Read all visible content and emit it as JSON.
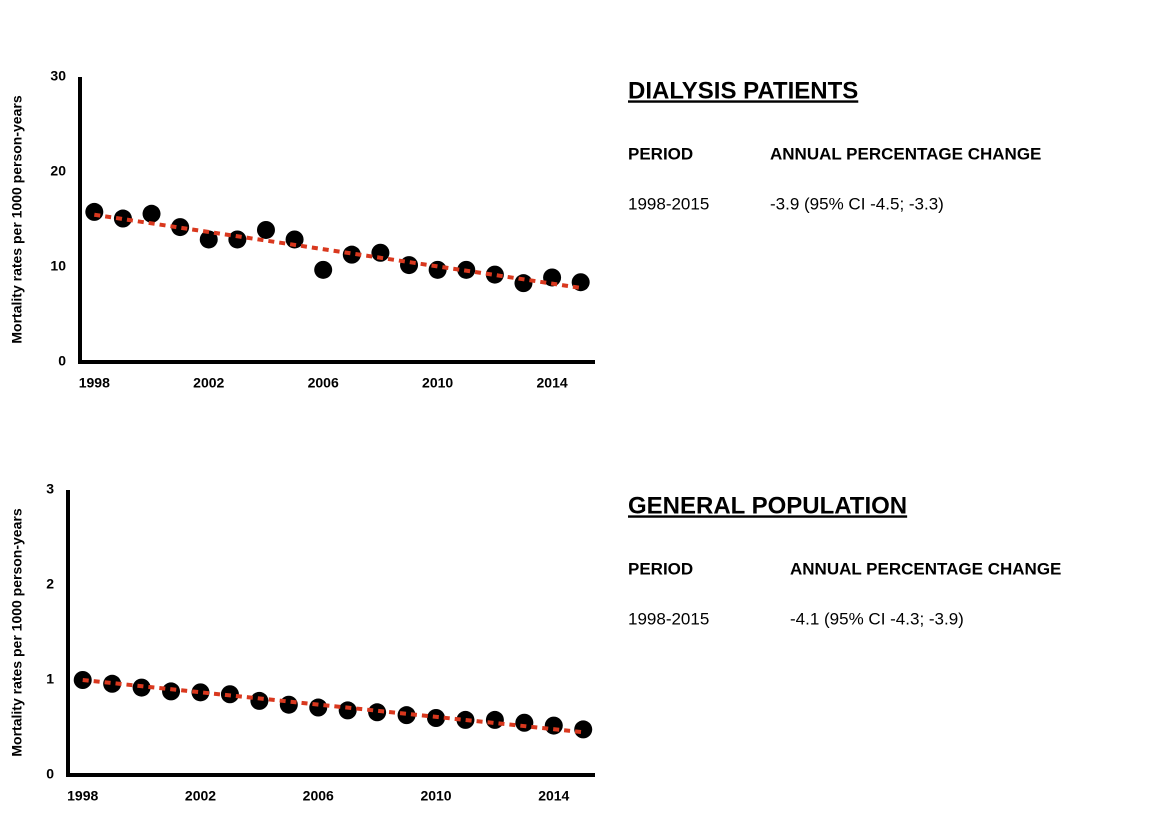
{
  "chart_data": [
    {
      "type": "scatter",
      "ylabel": "Mortality rates per 1000 person-years",
      "x": [
        1998,
        1999,
        2000,
        2001,
        2002,
        2003,
        2004,
        2005,
        2006,
        2007,
        2008,
        2009,
        2010,
        2011,
        2012,
        2013,
        2014,
        2015
      ],
      "values": [
        15.8,
        15.1,
        15.6,
        14.2,
        12.9,
        12.9,
        13.9,
        12.9,
        9.7,
        11.3,
        11.5,
        10.2,
        9.7,
        9.7,
        9.2,
        8.3,
        8.9,
        8.4
      ],
      "color": "#000000",
      "trend": {
        "x": [
          1998,
          2015
        ],
        "values": [
          15.5,
          7.8
        ],
        "color": "#d9381e"
      },
      "xlim": [
        1997.5,
        2015.5
      ],
      "xticks": [
        1998,
        2002,
        2006,
        2010,
        2014
      ],
      "ylim": [
        0,
        30
      ],
      "yticks": [
        0,
        10,
        20,
        30
      ],
      "grid": false
    },
    {
      "type": "scatter",
      "ylabel": "Mortality rates per 1000 person-years",
      "x": [
        1998,
        1999,
        2000,
        2001,
        2002,
        2003,
        2004,
        2005,
        2006,
        2007,
        2008,
        2009,
        2010,
        2011,
        2012,
        2013,
        2014,
        2015
      ],
      "values": [
        1.0,
        0.96,
        0.92,
        0.88,
        0.87,
        0.85,
        0.78,
        0.74,
        0.71,
        0.68,
        0.66,
        0.63,
        0.6,
        0.58,
        0.58,
        0.55,
        0.52,
        0.48
      ],
      "color": "#000000",
      "trend": {
        "x": [
          1998,
          2015
        ],
        "values": [
          1.0,
          0.45
        ],
        "color": "#d9381e"
      },
      "xlim": [
        1997.5,
        2015.4
      ],
      "xticks": [
        1998,
        2002,
        2006,
        2010,
        2014
      ],
      "ylim": [
        0,
        3
      ],
      "yticks": [
        0,
        1,
        2,
        3
      ],
      "grid": false
    }
  ],
  "panels": [
    {
      "title": "DIALYSIS PATIENTS",
      "headers": [
        "PERIOD",
        "ANNUAL PERCENTAGE CHANGE"
      ],
      "row": [
        "1998-2015",
        "-3.9 (95% CI -4.5; -3.3)"
      ]
    },
    {
      "title": "GENERAL POPULATION",
      "headers": [
        "PERIOD",
        "ANNUAL PERCENTAGE CHANGE"
      ],
      "row": [
        "1998-2015",
        "-4.1 (95% CI -4.3; -3.9)"
      ]
    }
  ]
}
